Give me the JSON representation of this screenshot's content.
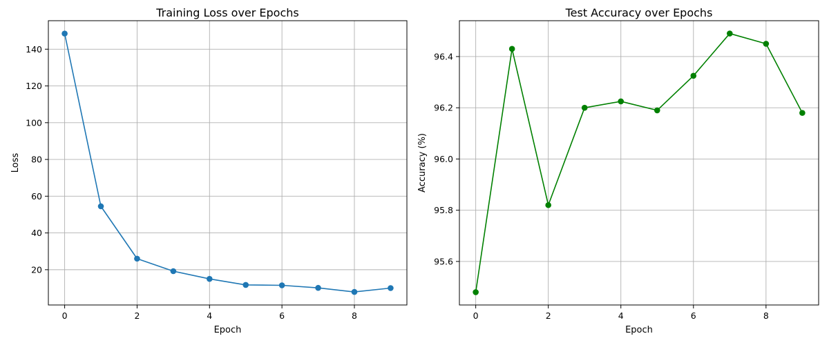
{
  "chart_data": [
    {
      "type": "line",
      "title": "Training Loss over Epochs",
      "xlabel": "Epoch",
      "ylabel": "Loss",
      "x": [
        0,
        1,
        2,
        3,
        4,
        5,
        6,
        7,
        8,
        9
      ],
      "series": [
        {
          "values": [
            148.5,
            54.5,
            26.0,
            19.2,
            15.0,
            11.7,
            11.5,
            10.1,
            7.9,
            10.0
          ],
          "color": "#1f77b4",
          "marker": "circle"
        }
      ],
      "xlim": [
        -0.45,
        9.45
      ],
      "ylim": [
        0.8,
        155.5
      ],
      "xticks": [
        0,
        2,
        4,
        6,
        8
      ],
      "yticks": [
        20,
        40,
        60,
        80,
        100,
        120,
        140
      ],
      "grid": true
    },
    {
      "type": "line",
      "title": "Test Accuracy over Epochs",
      "xlabel": "Epoch",
      "ylabel": "Accuracy (%)",
      "x": [
        0,
        1,
        2,
        3,
        4,
        5,
        6,
        7,
        8,
        9
      ],
      "series": [
        {
          "values": [
            95.48,
            96.43,
            95.82,
            96.2,
            96.225,
            96.19,
            96.325,
            96.49,
            96.45,
            96.18
          ],
          "color": "#008000",
          "marker": "circle"
        }
      ],
      "xlim": [
        -0.45,
        9.45
      ],
      "ylim": [
        95.43,
        96.54
      ],
      "xticks": [
        0,
        2,
        4,
        6,
        8
      ],
      "yticks": [
        95.6,
        95.8,
        96.0,
        96.2,
        96.4
      ],
      "ytick_labels": [
        "95.6",
        "95.8",
        "96.0",
        "96.2",
        "96.4"
      ],
      "grid": true
    }
  ]
}
